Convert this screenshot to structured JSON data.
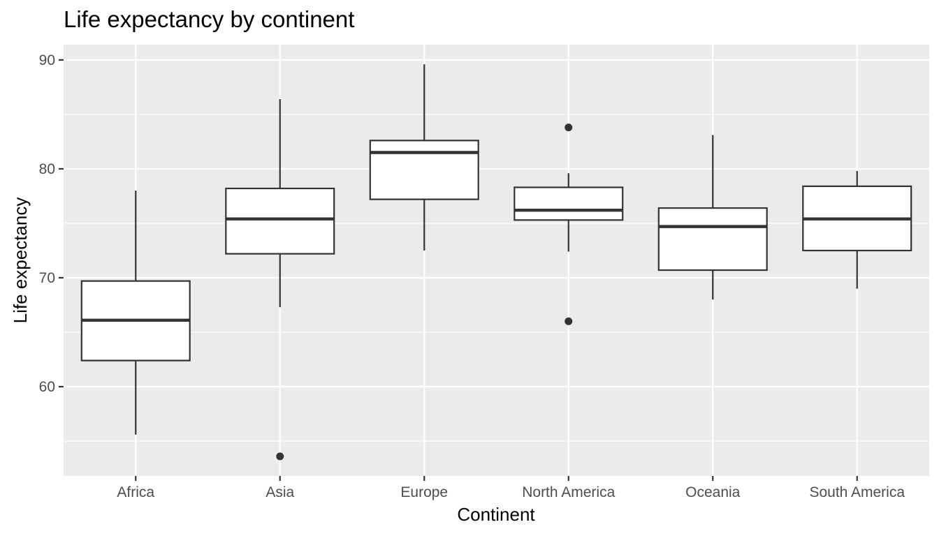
{
  "chart_data": {
    "type": "boxplot",
    "title": "Life expectancy by continent",
    "xlabel": "Continent",
    "ylabel": "Life expectancy",
    "ylim": [
      51.8,
      91.4
    ],
    "yticks": [
      60,
      70,
      80,
      90
    ],
    "grid": true,
    "categories": [
      "Africa",
      "Asia",
      "Europe",
      "North America",
      "Oceania",
      "South America"
    ],
    "boxes": [
      {
        "category": "Africa",
        "whisker_low": 55.6,
        "q1": 62.4,
        "median": 66.1,
        "q3": 69.7,
        "whisker_high": 78.0,
        "outliers": []
      },
      {
        "category": "Asia",
        "whisker_low": 67.3,
        "q1": 72.2,
        "median": 75.4,
        "q3": 78.2,
        "whisker_high": 86.4,
        "outliers": [
          53.6
        ]
      },
      {
        "category": "Europe",
        "whisker_low": 72.5,
        "q1": 77.2,
        "median": 81.5,
        "q3": 82.6,
        "whisker_high": 89.6,
        "outliers": []
      },
      {
        "category": "North America",
        "whisker_low": 72.4,
        "q1": 75.3,
        "median": 76.2,
        "q3": 78.3,
        "whisker_high": 79.6,
        "outliers": [
          83.8,
          66.0
        ]
      },
      {
        "category": "Oceania",
        "whisker_low": 68.0,
        "q1": 70.7,
        "median": 74.7,
        "q3": 76.4,
        "whisker_high": 83.1,
        "outliers": []
      },
      {
        "category": "South America",
        "whisker_low": 69.0,
        "q1": 72.5,
        "median": 75.4,
        "q3": 78.4,
        "whisker_high": 79.8,
        "outliers": []
      }
    ],
    "colors": {
      "panel": "#ebebeb",
      "grid": "#ffffff",
      "box_fill": "#ffffff",
      "box_stroke": "#333333",
      "tick_text": "#4d4d4d",
      "tick_mark": "#333333"
    }
  }
}
